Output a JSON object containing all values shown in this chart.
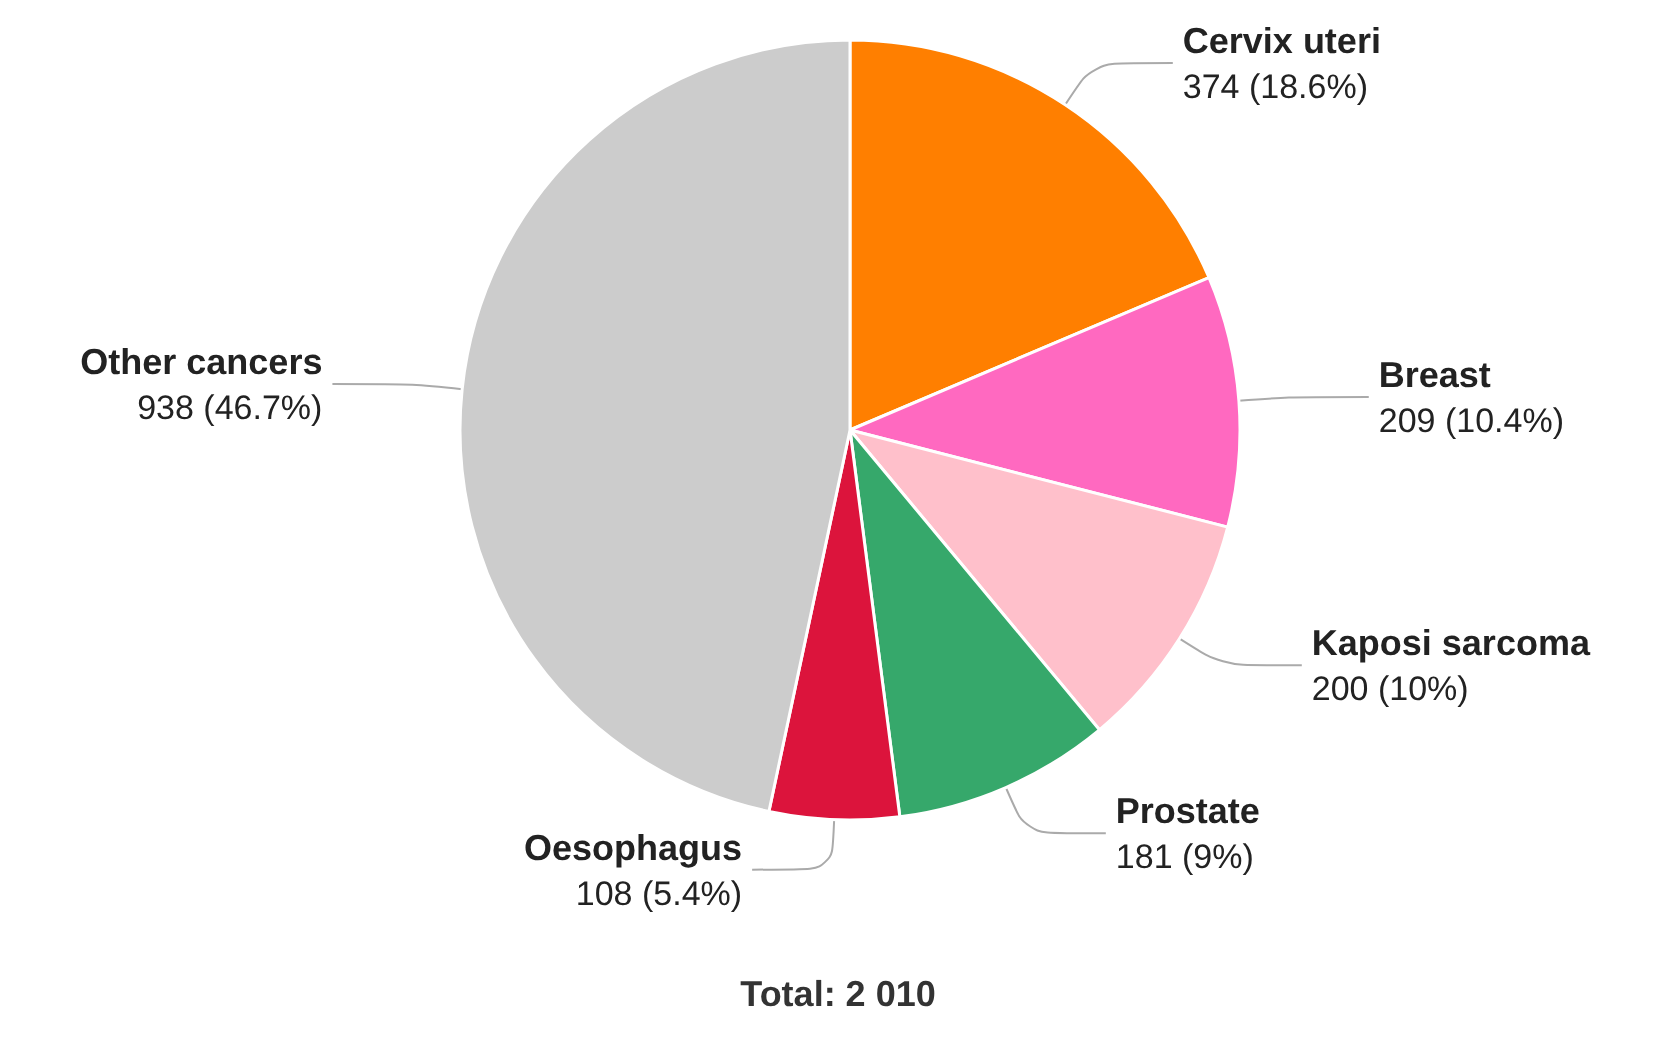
{
  "chart_data": {
    "type": "pie",
    "categories": [
      "Cervix uteri",
      "Breast",
      "Kaposi sarcoma",
      "Prostate",
      "Oesophagus",
      "Other cancers"
    ],
    "values": [
      374,
      209,
      200,
      181,
      108,
      938
    ],
    "value_labels": [
      "374 (18.6%)",
      "209 (10.4%)",
      "200 (10%)",
      "181 (9%)",
      "108 (5.4%)",
      "938 (46.7%)"
    ],
    "colors": [
      "#ff7f00",
      "#ff69c0",
      "#ffc0cb",
      "#36a86b",
      "#dc143c",
      "#cccccc"
    ],
    "annotations": [
      "Total: 2 010"
    ]
  }
}
